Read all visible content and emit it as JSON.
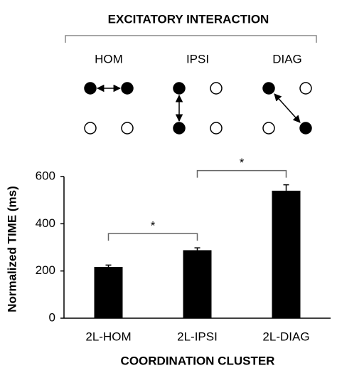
{
  "diagram": {
    "title": "EXCITATORY INTERACTION",
    "panels": [
      {
        "label": "HOM"
      },
      {
        "label": "IPSI"
      },
      {
        "label": "DIAG"
      }
    ]
  },
  "chart_data": {
    "type": "bar",
    "categories": [
      "2L-HOM",
      "2L-IPSI",
      "2L-DIAG"
    ],
    "values": [
      217,
      288,
      540
    ],
    "errors": [
      8,
      10,
      25
    ],
    "color": "#000000",
    "ylim": [
      0,
      600
    ],
    "yticks": [
      0,
      200,
      400,
      600
    ],
    "y_label": "Normalized  TIME  (ms)",
    "x_label": "COORDINATION CLUSTER",
    "annotations": [
      {
        "text": "*",
        "between": [
          "2L-HOM",
          "2L-IPSI"
        ]
      },
      {
        "text": "*",
        "between": [
          "2L-IPSI",
          "2L-DIAG"
        ]
      }
    ]
  }
}
